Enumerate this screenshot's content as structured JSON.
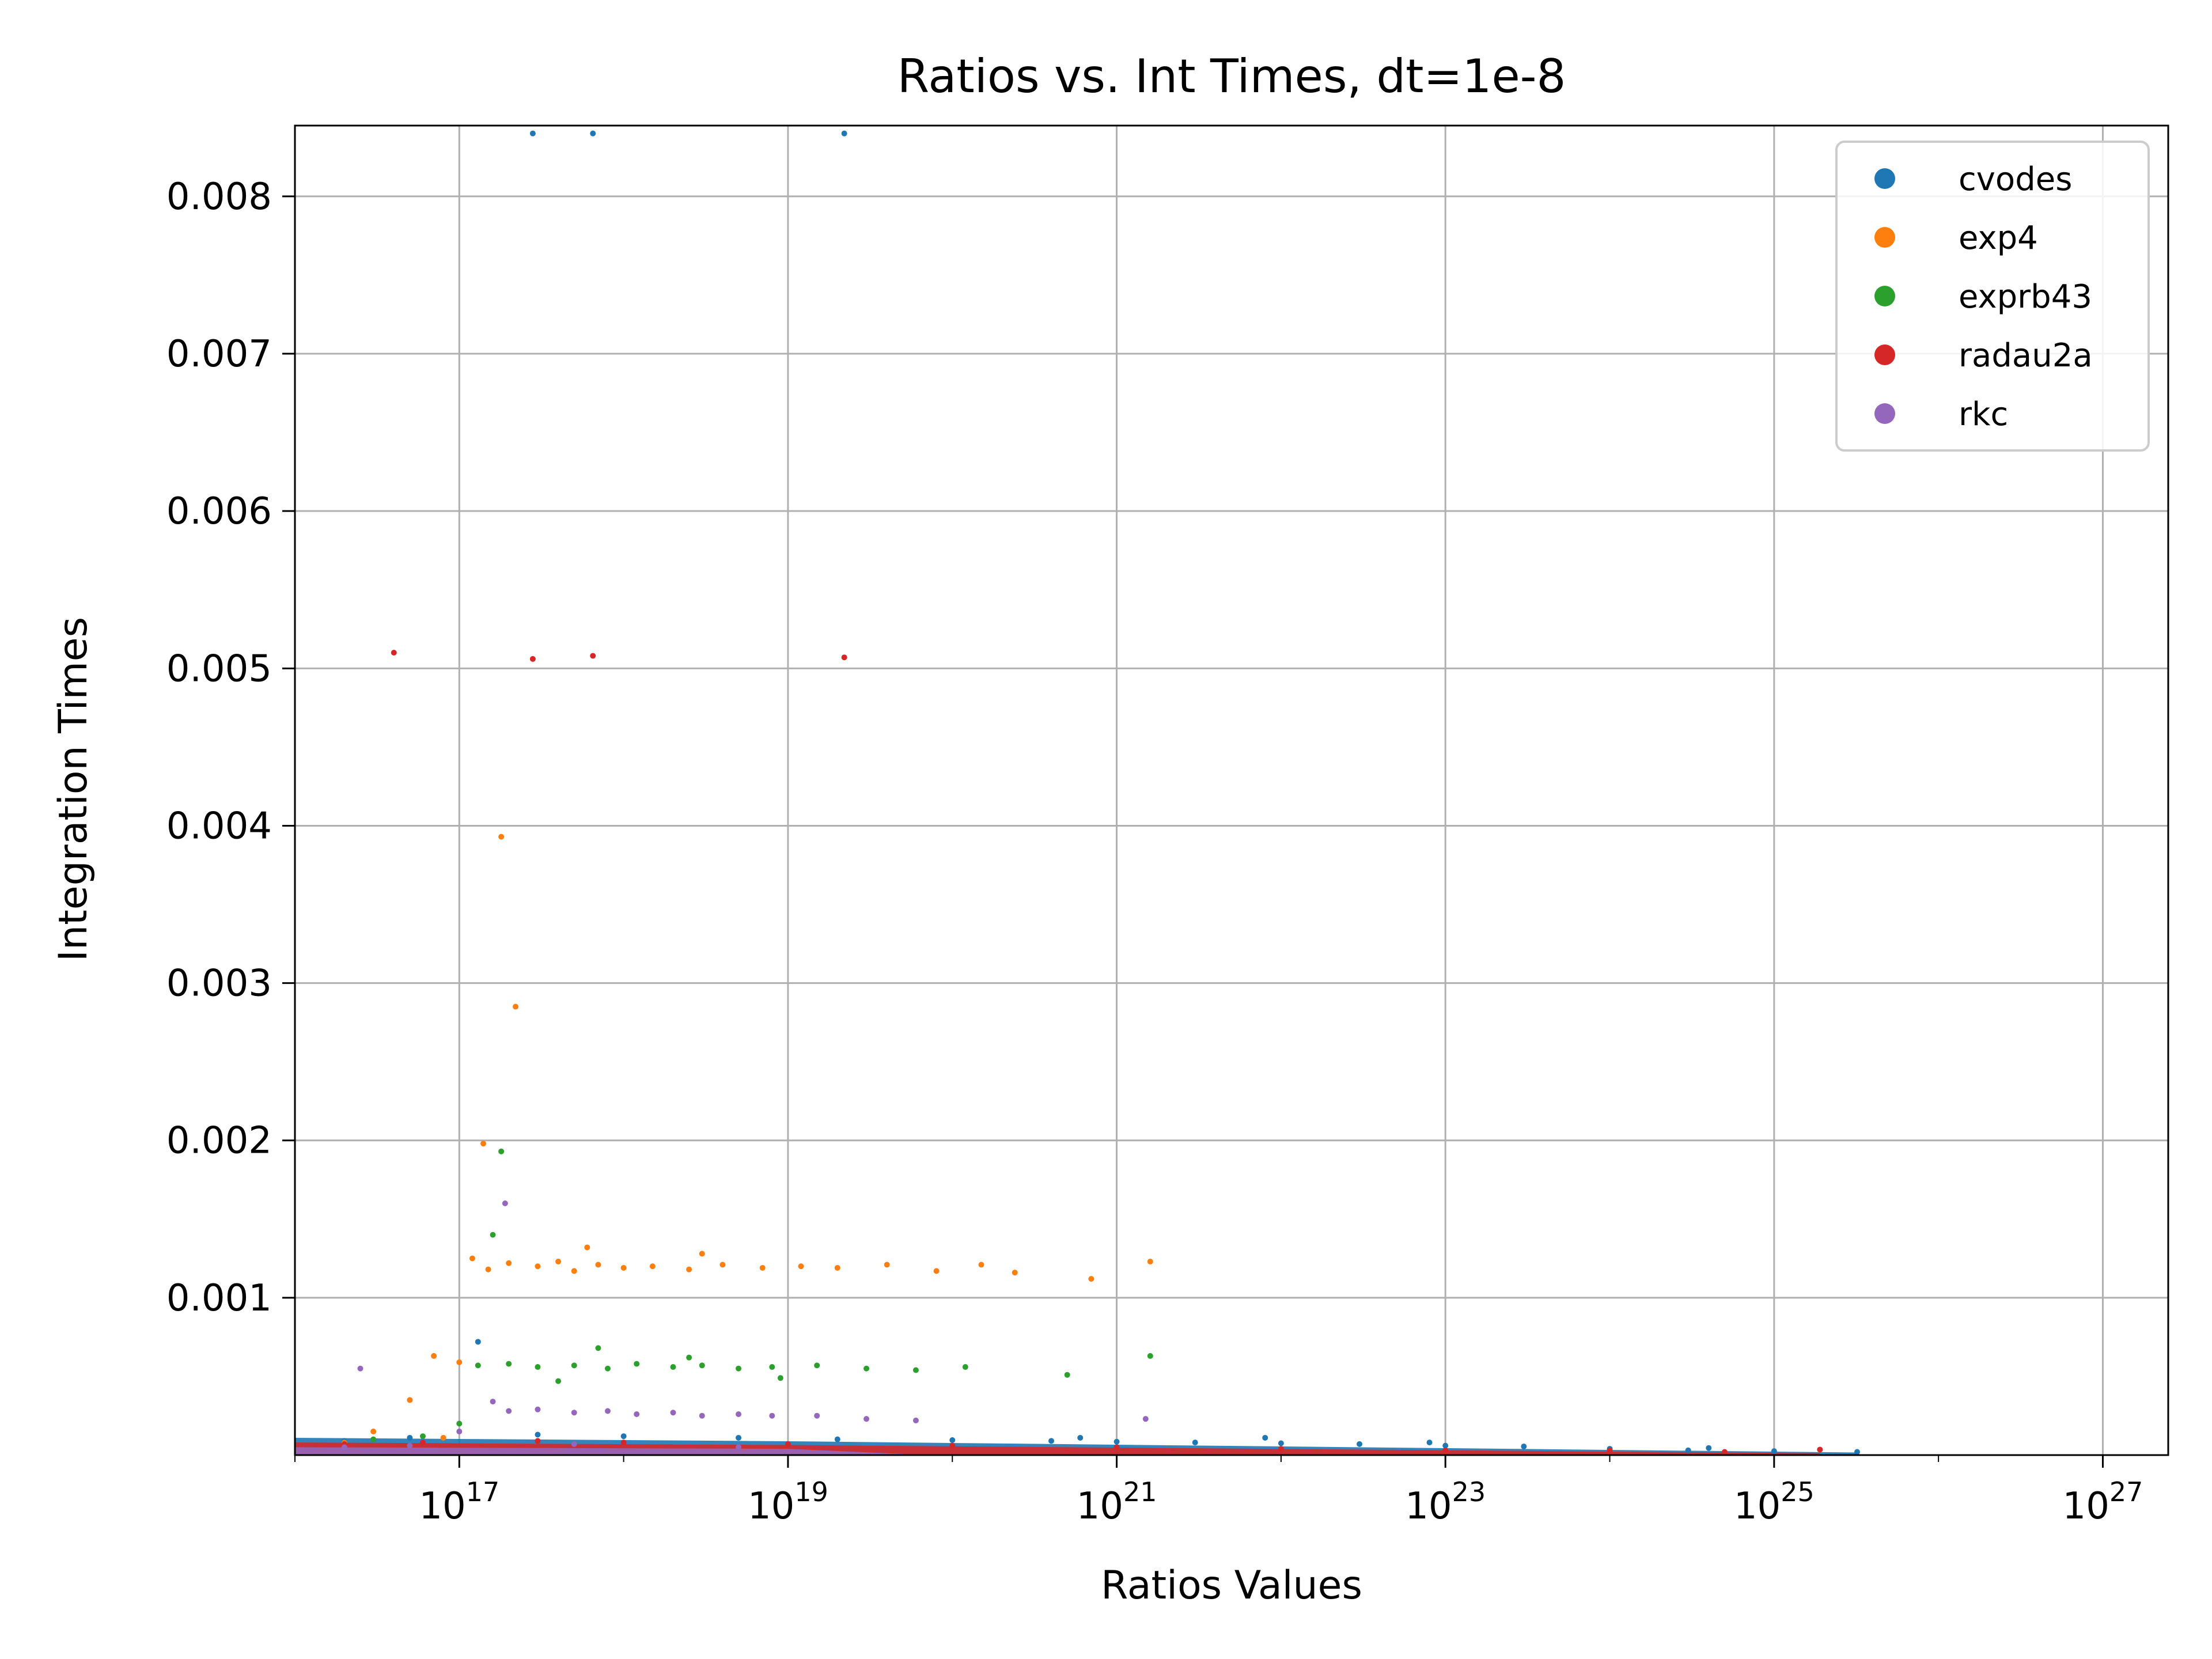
{
  "chart_data": {
    "type": "scatter",
    "title": "Ratios vs. Int Times, dt=1e-8",
    "xlabel": "Ratios Values",
    "ylabel": "Integration Times",
    "x_scale": "log",
    "xlim": [
      1e+16,
      2.5e+27
    ],
    "ylim": [
      0,
      0.00845
    ],
    "x_ticks": [
      {
        "base": "10",
        "exp": "17",
        "value": 1e+17
      },
      {
        "base": "10",
        "exp": "19",
        "value": 1e+19
      },
      {
        "base": "10",
        "exp": "21",
        "value": 1e+21
      },
      {
        "base": "10",
        "exp": "23",
        "value": 1e+23
      },
      {
        "base": "10",
        "exp": "25",
        "value": 1e+25
      },
      {
        "base": "10",
        "exp": "27",
        "value": 1e+27
      }
    ],
    "y_ticks": [
      {
        "label": "0.001",
        "value": 0.001
      },
      {
        "label": "0.002",
        "value": 0.002
      },
      {
        "label": "0.003",
        "value": 0.003
      },
      {
        "label": "0.004",
        "value": 0.004
      },
      {
        "label": "0.005",
        "value": 0.005
      },
      {
        "label": "0.006",
        "value": 0.006
      },
      {
        "label": "0.007",
        "value": 0.007
      },
      {
        "label": "0.008",
        "value": 0.008
      }
    ],
    "grid": true,
    "legend_position": "top-right",
    "series": [
      {
        "name": "cvodes",
        "color": "#1f77b4",
        "points": [
          [
            2.8e+17,
            0.0084
          ],
          [
            6.5e+17,
            0.0084
          ],
          [
            2.2e+19,
            0.0084
          ],
          [
            1.3e+17,
            0.00072
          ],
          [
            2e+16,
            9e-05
          ],
          [
            5e+16,
            0.00011
          ],
          [
            3e+17,
            0.00013
          ],
          [
            1e+18,
            0.00012
          ],
          [
            5e+18,
            0.00011
          ],
          [
            2e+19,
            0.0001
          ],
          [
            1e+20,
            9.5e-05
          ],
          [
            4e+20,
            9e-05
          ],
          [
            1e+21,
            8.5e-05
          ],
          [
            3e+21,
            8e-05
          ],
          [
            8e+21,
            0.00011
          ],
          [
            1e+22,
            7.5e-05
          ],
          [
            3e+22,
            7e-05
          ],
          [
            1e+23,
            6e-05
          ],
          [
            3e+23,
            5.5e-05
          ],
          [
            1e+24,
            4e-05
          ],
          [
            3e+24,
            3e-05
          ],
          [
            1e+25,
            2.5e-05
          ],
          [
            3.2e+25,
            2e-05
          ],
          [
            4e+24,
            4.5e-05
          ],
          [
            8e+22,
            8e-05
          ],
          [
            6e+20,
            0.00011
          ]
        ]
      },
      {
        "name": "exp4",
        "color": "#ff7f0e",
        "points": [
          [
            1.8e+17,
            0.00393
          ],
          [
            2.2e+17,
            0.00285
          ],
          [
            1.4e+17,
            0.00198
          ],
          [
            1.2e+17,
            0.00125
          ],
          [
            1.5e+17,
            0.00118
          ],
          [
            2e+17,
            0.00122
          ],
          [
            3e+17,
            0.0012
          ],
          [
            4e+17,
            0.00123
          ],
          [
            5e+17,
            0.00117
          ],
          [
            7e+17,
            0.00121
          ],
          [
            1e+18,
            0.00119
          ],
          [
            1.5e+18,
            0.0012
          ],
          [
            2.5e+18,
            0.00118
          ],
          [
            4e+18,
            0.00121
          ],
          [
            7e+18,
            0.00119
          ],
          [
            1.2e+19,
            0.0012
          ],
          [
            2e+19,
            0.00119
          ],
          [
            4e+19,
            0.00121
          ],
          [
            8e+19,
            0.00117
          ],
          [
            1.5e+20,
            0.00121
          ],
          [
            2.4e+20,
            0.00116
          ],
          [
            1.6e+21,
            0.00123
          ],
          [
            7e+20,
            0.00112
          ],
          [
            6e+17,
            0.00132
          ],
          [
            3e+18,
            0.00128
          ],
          [
            7e+16,
            0.00063
          ],
          [
            1e+17,
            0.00059
          ],
          [
            5e+16,
            0.00035
          ],
          [
            3e+16,
            0.00015
          ],
          [
            2e+16,
            8e-05
          ],
          [
            8e+16,
            0.00011
          ]
        ]
      },
      {
        "name": "exprb43",
        "color": "#2ca02c",
        "points": [
          [
            1.8e+17,
            0.00193
          ],
          [
            1.6e+17,
            0.0014
          ],
          [
            1.3e+17,
            0.00057
          ],
          [
            2e+17,
            0.00058
          ],
          [
            3e+17,
            0.00056
          ],
          [
            5e+17,
            0.00057
          ],
          [
            8e+17,
            0.00055
          ],
          [
            1.2e+18,
            0.00058
          ],
          [
            2e+18,
            0.00056
          ],
          [
            3e+18,
            0.00057
          ],
          [
            5e+18,
            0.00055
          ],
          [
            8e+18,
            0.00056
          ],
          [
            1.5e+19,
            0.00057
          ],
          [
            3e+19,
            0.00055
          ],
          [
            6e+19,
            0.00054
          ],
          [
            1.2e+20,
            0.00056
          ],
          [
            1.6e+21,
            0.00063
          ],
          [
            5e+20,
            0.00051
          ],
          [
            7e+17,
            0.00068
          ],
          [
            2.5e+18,
            0.00062
          ],
          [
            9e+18,
            0.00049
          ],
          [
            4e+17,
            0.00047
          ],
          [
            1e+17,
            0.0002
          ],
          [
            3e+16,
            0.0001
          ],
          [
            6e+16,
            0.00012
          ]
        ]
      },
      {
        "name": "radau2a",
        "color": "#d62728",
        "points": [
          [
            4e+16,
            0.0051
          ],
          [
            2.8e+17,
            0.00506
          ],
          [
            6.5e+17,
            0.00508
          ],
          [
            2.2e+19,
            0.00507
          ],
          [
            2e+16,
            7e-05
          ],
          [
            6e+16,
            8e-05
          ],
          [
            3e+17,
            9e-05
          ],
          [
            1e+18,
            8e-05
          ],
          [
            1e+19,
            7e-05
          ],
          [
            1e+20,
            6e-05
          ],
          [
            1e+21,
            5e-05
          ],
          [
            1e+22,
            4e-05
          ],
          [
            1e+23,
            3e-05
          ],
          [
            1e+24,
            3e-05
          ],
          [
            5e+24,
            2e-05
          ],
          [
            1.9e+25,
            3.5e-05
          ]
        ]
      },
      {
        "name": "rkc",
        "color": "#9467bd",
        "points": [
          [
            1.9e+17,
            0.0016
          ],
          [
            1.6e+17,
            0.00034
          ],
          [
            2e+17,
            0.00028
          ],
          [
            3e+17,
            0.00029
          ],
          [
            5e+17,
            0.00027
          ],
          [
            8e+17,
            0.00028
          ],
          [
            1.2e+18,
            0.00026
          ],
          [
            2e+18,
            0.00027
          ],
          [
            3e+18,
            0.00025
          ],
          [
            5e+18,
            0.00026
          ],
          [
            8e+18,
            0.00025
          ],
          [
            1.5e+19,
            0.00025
          ],
          [
            3e+19,
            0.00023
          ],
          [
            6e+19,
            0.00022
          ],
          [
            1.5e+21,
            0.00023
          ],
          [
            2.5e+16,
            0.00055
          ],
          [
            1e+17,
            0.00015
          ],
          [
            2e+16,
            5e-05
          ],
          [
            5e+16,
            6e-05
          ],
          [
            5e+17,
            7e-05
          ],
          [
            5e+18,
            5e-05
          ]
        ]
      }
    ]
  }
}
